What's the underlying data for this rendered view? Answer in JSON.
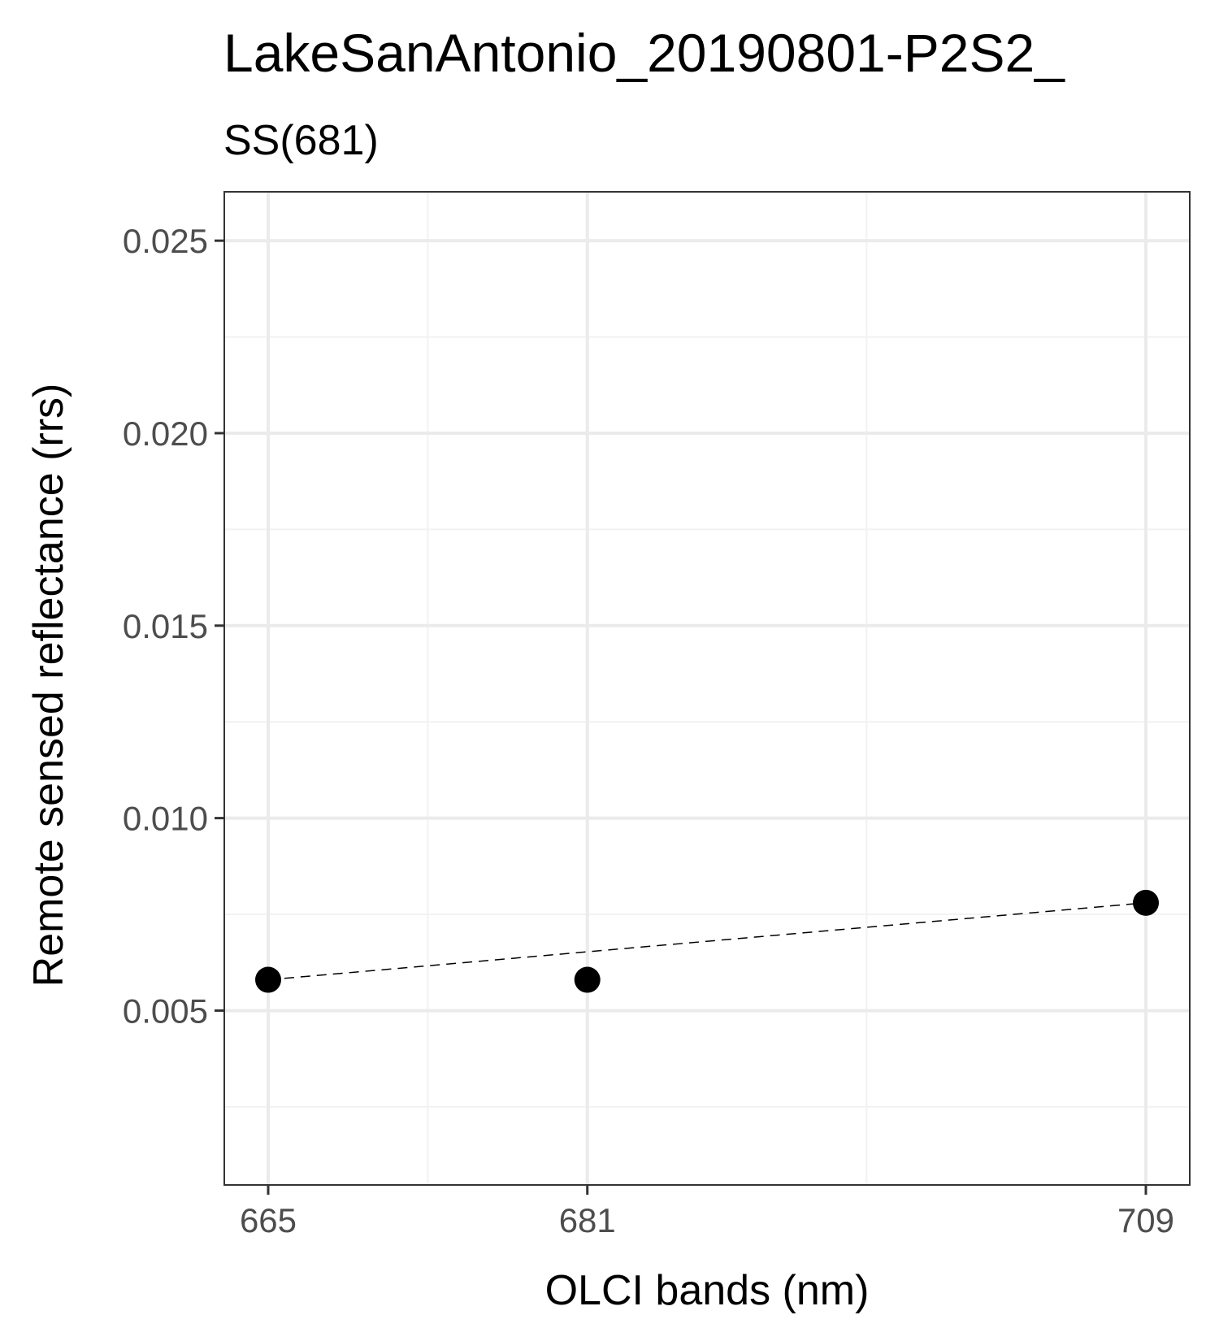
{
  "colors": {
    "panel_border": "#333333",
    "grid_major": "#ebebeb",
    "grid_minor": "#f2f2f2",
    "points": "#000000",
    "line": "#000000",
    "tick_text": "#4d4d4d",
    "background": "#ffffff"
  },
  "chart_data": {
    "type": "scatter",
    "title": "LakeSanAntonio_20190801-P2S2_",
    "subtitle": "SS(681)",
    "xlabel": "OLCI bands (nm)",
    "ylabel": "Remote sensed reflectance (rrs)",
    "x_ticks": [
      665,
      681,
      709
    ],
    "x_tick_labels": [
      "665",
      "681",
      "709"
    ],
    "y_ticks": [
      0.005,
      0.01,
      0.015,
      0.02,
      0.025
    ],
    "y_tick_labels": [
      "0.005",
      "0.010",
      "0.015",
      "0.020",
      "0.025"
    ],
    "xlim": [
      662.8,
      711.2
    ],
    "ylim": [
      0.00047,
      0.02627
    ],
    "grid": true,
    "series": [
      {
        "points": [
          {
            "x": 665,
            "y": 0.0058
          },
          {
            "x": 681,
            "y": 0.0058
          },
          {
            "x": 709,
            "y": 0.0078
          }
        ]
      }
    ],
    "baseline": {
      "style": "dashed",
      "from": {
        "x": 665,
        "y": 0.0058
      },
      "to": {
        "x": 709,
        "y": 0.0078
      }
    }
  }
}
